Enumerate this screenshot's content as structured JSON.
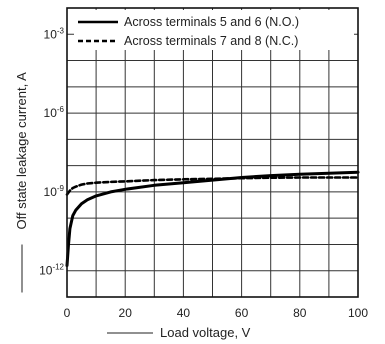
{
  "chart_data": {
    "type": "line",
    "xlabel": "Load voltage, V",
    "ylabel": "Off state leakage current, A",
    "xlim": [
      0,
      100
    ],
    "ylim_log10": [
      -13,
      -2
    ],
    "y_scale": "log",
    "grid": true,
    "legend_position": "top",
    "x_ticks": [
      {
        "value": 0,
        "label": "0"
      },
      {
        "value": 20,
        "label": "20"
      },
      {
        "value": 40,
        "label": "40"
      },
      {
        "value": 60,
        "label": "60"
      },
      {
        "value": 80,
        "label": "80"
      },
      {
        "value": 100,
        "label": "100"
      }
    ],
    "y_ticks": [
      {
        "exp": -3,
        "base": "10",
        "sup": "-3"
      },
      {
        "exp": -6,
        "base": "10",
        "sup": "-6"
      },
      {
        "exp": -9,
        "base": "10",
        "sup": "-9"
      },
      {
        "exp": -12,
        "base": "10",
        "sup": "-12"
      }
    ],
    "series": [
      {
        "name": "Across terminals 5 and 6 (N.O.)",
        "style": "solid",
        "color": "#000000",
        "x": [
          0,
          0.5,
          1,
          2,
          3,
          5,
          7,
          10,
          15,
          20,
          30,
          40,
          50,
          60,
          70,
          80,
          90,
          100
        ],
        "y_log10": [
          -11.8,
          -11.0,
          -10.4,
          -9.9,
          -9.7,
          -9.45,
          -9.3,
          -9.15,
          -9.0,
          -8.9,
          -8.75,
          -8.65,
          -8.55,
          -8.45,
          -8.38,
          -8.33,
          -8.29,
          -8.25
        ]
      },
      {
        "name": "Across terminals 7 and 8 (N.C.)",
        "style": "dashed",
        "color": "#000000",
        "x": [
          0,
          1,
          2,
          3,
          5,
          7,
          10,
          15,
          20,
          30,
          40,
          50,
          60,
          70,
          80,
          90,
          100
        ],
        "y_log10": [
          -9.1,
          -8.95,
          -8.85,
          -8.8,
          -8.72,
          -8.68,
          -8.65,
          -8.62,
          -8.6,
          -8.55,
          -8.52,
          -8.5,
          -8.48,
          -8.46,
          -8.45,
          -8.45,
          -8.45
        ]
      }
    ]
  }
}
